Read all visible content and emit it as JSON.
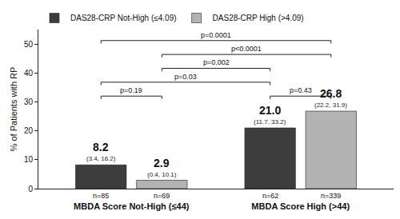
{
  "chart_data": {
    "type": "bar",
    "categories": [
      "MBDA Score Not-High (≤44)",
      "MBDA Score High (>44)"
    ],
    "series": [
      {
        "name": "DAS28-CRP Not-High (≤4.09)",
        "color": "#3d3d3d",
        "values": [
          8.2,
          21.0
        ],
        "value_labels": [
          "8.2",
          "21.0"
        ],
        "ci_labels": [
          "(3.4, 16.2)",
          "(11.7, 33.2)"
        ],
        "n_labels": [
          "n=85",
          "n=62"
        ]
      },
      {
        "name": "DAS28-CRP High (>4.09)",
        "color": "#b3b3b3",
        "values": [
          2.9,
          26.8
        ],
        "value_labels": [
          "2.9",
          "26.8"
        ],
        "ci_labels": [
          "(0.4, 10.1)",
          "(22.2, 31.9)"
        ],
        "n_labels": [
          "n=69",
          "n=339"
        ]
      }
    ],
    "y_label": "% of Patients with RP",
    "ylim": [
      0,
      55
    ],
    "yticks": [
      0,
      10,
      20,
      30,
      40,
      50
    ],
    "grid": false,
    "legend": "top left",
    "data_labels": true,
    "comparisons": [
      {
        "bars": [
          [
            0,
            0
          ],
          [
            1,
            1
          ]
        ],
        "label": "p=0.0001"
      },
      {
        "bars": [
          [
            0,
            1
          ],
          [
            1,
            1
          ]
        ],
        "label": "p<0.0001"
      },
      {
        "bars": [
          [
            0,
            1
          ],
          [
            1,
            0
          ]
        ],
        "label": "p=0.002"
      },
      {
        "bars": [
          [
            0,
            0
          ],
          [
            1,
            0
          ]
        ],
        "label": "p=0.03"
      },
      {
        "bars": [
          [
            0,
            0
          ],
          [
            0,
            1
          ]
        ],
        "label": "p=0.19"
      },
      {
        "bars": [
          [
            1,
            0
          ],
          [
            1,
            1
          ]
        ],
        "label": "p=0.43"
      }
    ]
  }
}
